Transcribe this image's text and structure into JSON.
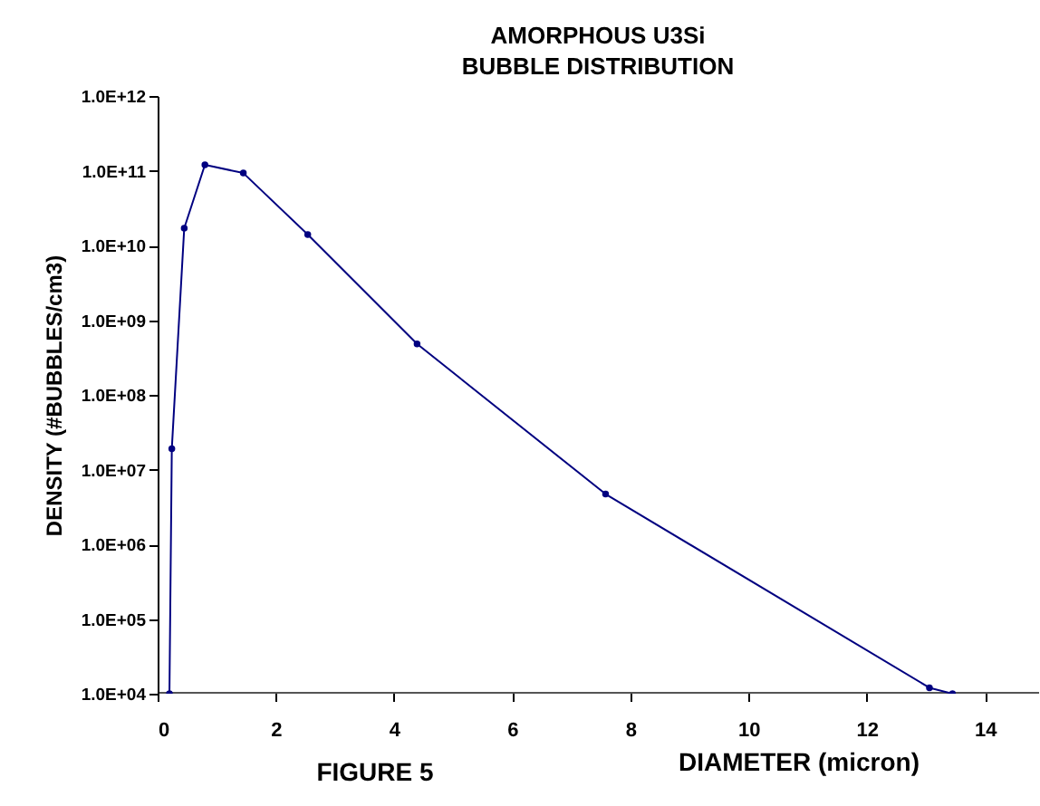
{
  "chart_data": {
    "type": "line",
    "title": [
      "AMORPHOUS U3Si",
      "BUBBLE DISTRIBUTION"
    ],
    "xlabel": "DIAMETER (micron)",
    "ylabel": "DENSITY (#BUBBLES/cm3)",
    "annotations": [
      "FIGURE 5"
    ],
    "x": [
      0.2,
      0.24,
      0.45,
      0.8,
      1.45,
      2.54,
      4.39,
      7.58,
      13.06,
      13.45
    ],
    "series": [
      {
        "color": "#000080",
        "values": [
          10000,
          19000000,
          17000000000,
          120000000000,
          93000000000,
          14000000000,
          480000000,
          4700000,
          12000,
          10000
        ]
      }
    ],
    "log": "y",
    "marker": "circle",
    "line_style": "solid",
    "grid": false,
    "legend": false,
    "xlim": [
      0,
      14.9
    ],
    "xticks": [
      0,
      2,
      4,
      6,
      8,
      10,
      12,
      14
    ],
    "ylim": [
      10000,
      1000000000000
    ],
    "yticks": [
      {
        "value": 10000,
        "label": "1.0E+04"
      },
      {
        "value": 100000,
        "label": "1.0E+05"
      },
      {
        "value": 1000000,
        "label": "1.0E+06"
      },
      {
        "value": 10000000,
        "label": "1.0E+07"
      },
      {
        "value": 100000000,
        "label": "1.0E+08"
      },
      {
        "value": 1000000000,
        "label": "1.0E+09"
      },
      {
        "value": 10000000000,
        "label": "1.0E+10"
      },
      {
        "value": 100000000000,
        "label": "1.0E+11"
      },
      {
        "value": 1000000000000,
        "label": "1.0E+12"
      }
    ]
  }
}
